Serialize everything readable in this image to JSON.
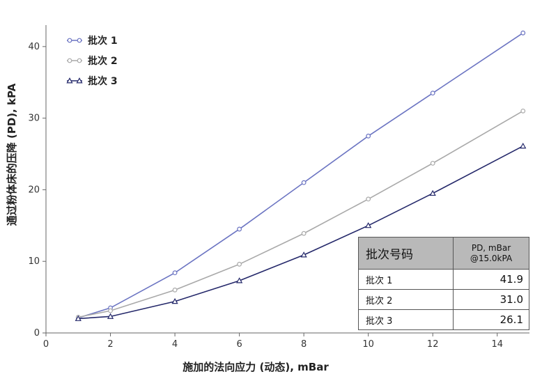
{
  "chart_data": {
    "type": "line",
    "xlabel": "施加的法向应力 (动态), mBar",
    "ylabel": "通过粉体床的压降 (PD), kPA",
    "xlim": [
      0,
      15
    ],
    "ylim": [
      0,
      43
    ],
    "xticks": [
      0,
      2,
      4,
      6,
      8,
      10,
      12,
      14
    ],
    "yticks": [
      0,
      10,
      20,
      30,
      40
    ],
    "grid": false,
    "legend": {
      "placement": "top-left"
    },
    "series": [
      {
        "name": "批次 1",
        "color": "#6b74c2",
        "marker": "circle",
        "x": [
          1,
          2,
          4,
          6,
          8,
          10,
          12,
          14.8
        ],
        "y": [
          2.1,
          3.5,
          8.4,
          14.5,
          21.0,
          27.5,
          33.5,
          41.9
        ]
      },
      {
        "name": "批次 2",
        "color": "#a9a9a9",
        "marker": "circle",
        "x": [
          1,
          2,
          4,
          6,
          8,
          10,
          12,
          14.8
        ],
        "y": [
          2.2,
          3.1,
          6.0,
          9.6,
          13.9,
          18.7,
          23.7,
          31.0
        ]
      },
      {
        "name": "批次 3",
        "color": "#24286a",
        "marker": "triangle",
        "x": [
          1,
          2,
          4,
          6,
          8,
          10,
          12,
          14.8
        ],
        "y": [
          2.0,
          2.3,
          4.4,
          7.3,
          10.9,
          15.0,
          19.5,
          26.1
        ]
      }
    ]
  },
  "summary_table": {
    "header_batch": "批次号码",
    "header_pd_line1": "PD, mBar",
    "header_pd_line2": "@15.0kPA",
    "rows": [
      {
        "batch": "批次 1",
        "value": "41.9"
      },
      {
        "batch": "批次 2",
        "value": "31.0"
      },
      {
        "batch": "批次 3",
        "value": "26.1"
      }
    ]
  }
}
